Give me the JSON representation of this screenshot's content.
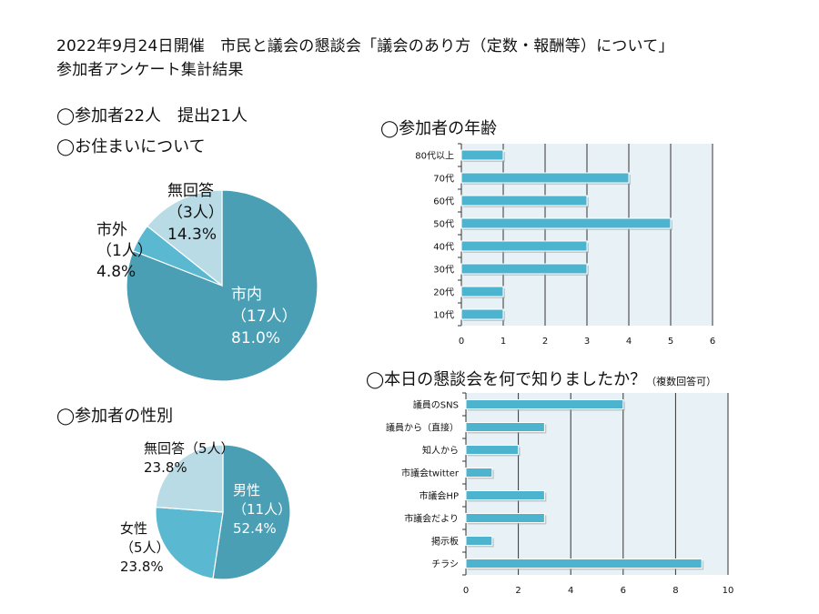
{
  "page": {
    "title_line1": "2022年9月24日開催　市民と議会の懇談会「議会のあり方（定数・報酬等）について」",
    "title_line2": "参加者アンケート集計結果",
    "participants": "◯参加者22人　提出21人",
    "residence_heading": "◯お住まいについて",
    "gender_heading": "◯参加者の性別",
    "age_heading": "◯参加者の年齢",
    "source_heading": "◯本日の懇談会を何で知りましたか？",
    "source_note": "（複数回答可）"
  },
  "colors": {
    "pie_dark": "#4a9fb5",
    "pie_mid": "#5ab8d1",
    "pie_light": "#b9dbe5",
    "bar": "#4db4d0",
    "plot_bg": "#e8f1f5",
    "grid": "#333333"
  },
  "chart_data": [
    {
      "id": "residence",
      "type": "pie",
      "title": "◯お住まいについて",
      "slices": [
        {
          "name": "市内",
          "count_label": "（17人）",
          "pct_label": "81.0%",
          "value": 17
        },
        {
          "name": "市外",
          "count_label": "（1人）",
          "pct_label": "4.8%",
          "value": 1
        },
        {
          "name": "無回答",
          "count_label": "（3人）",
          "pct_label": "14.3%",
          "value": 3
        }
      ]
    },
    {
      "id": "gender",
      "type": "pie",
      "title": "◯参加者の性別",
      "slices": [
        {
          "name": "男性",
          "count_label": "（11人）",
          "pct_label": "52.4%",
          "value": 11
        },
        {
          "name": "女性",
          "count_label": "（5人）",
          "pct_label": "23.8%",
          "value": 5
        },
        {
          "name": "無回答",
          "count_label": "（5人）",
          "pct_label": "23.8%",
          "value": 5
        }
      ]
    },
    {
      "id": "age",
      "type": "bar",
      "orientation": "horizontal",
      "title": "◯参加者の年齢",
      "categories": [
        "80代以上",
        "70代",
        "60代",
        "50代",
        "40代",
        "30代",
        "20代",
        "10代"
      ],
      "values": [
        1,
        4,
        3,
        5,
        3,
        3,
        1,
        1
      ],
      "xlim": [
        0,
        6
      ],
      "xticks": [
        0,
        1,
        2,
        3,
        4,
        5,
        6
      ],
      "grid": true
    },
    {
      "id": "source",
      "type": "bar",
      "orientation": "horizontal",
      "title": "◯本日の懇談会を何で知りましたか？（複数回答可）",
      "categories": [
        "議員のSNS",
        "議員から（直接）",
        "知人から",
        "市議会twitter",
        "市議会HP",
        "市議会だより",
        "掲示板",
        "チラシ"
      ],
      "values": [
        6,
        3,
        2,
        1,
        3,
        3,
        1,
        9
      ],
      "xlim": [
        0,
        10
      ],
      "xticks": [
        0,
        2,
        4,
        6,
        8,
        10
      ],
      "grid": true
    }
  ]
}
